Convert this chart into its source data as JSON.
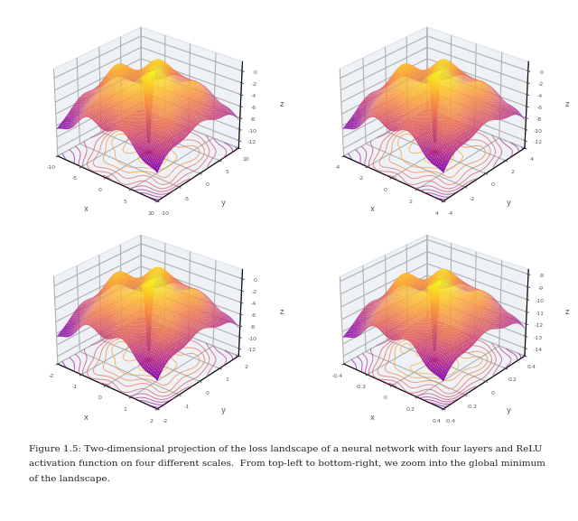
{
  "caption": "Figure 1.5: Two-dimensional projection of the loss landscape of a neural network with four layers and ReLU\nactivation function on four different scales.  From top-left to bottom-right, we zoom into the global minimum\nof the landscape.",
  "scales": [
    10,
    4,
    2,
    0.4
  ],
  "cmap": "plasma",
  "grid_resolution": 80,
  "figure_bg": "#ffffff",
  "pane_alpha": 0.85,
  "elev": 28,
  "azim": -50,
  "caption_fontsize": 7.5
}
